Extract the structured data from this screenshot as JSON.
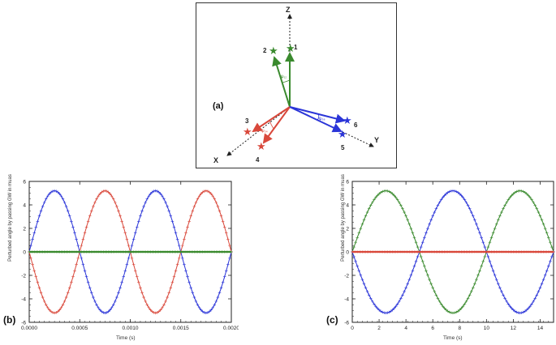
{
  "panels": {
    "a_label": "(a)",
    "b_label": "(b)",
    "c_label": "(c)"
  },
  "diagram": {
    "axes": {
      "z": "Z",
      "x": "X",
      "y": "Y"
    },
    "stars": [
      "1",
      "2",
      "3",
      "4",
      "5",
      "6"
    ],
    "angle_labels": {
      "green": "ψ₁₂",
      "red": "ψ₃₄",
      "blue": "ψ₅₆"
    },
    "colors": {
      "green": "#3a8a2e",
      "red": "#d9483b",
      "blue": "#2b35d8"
    }
  },
  "chart_data": [
    {
      "type": "line",
      "panel": "(b)",
      "xlabel": "Time (s)",
      "ylabel": "Perturbed angle by passing GW in muas",
      "xlim": [
        0,
        0.002
      ],
      "ylim": [
        -6,
        6
      ],
      "xticks": [
        "0.0000",
        "0.0005",
        "0.0010",
        "0.0015",
        "0.0020"
      ],
      "yticks": [
        "6",
        "4",
        "2",
        "0",
        "-2",
        "-4",
        "-6"
      ],
      "series": [
        {
          "color": "#2b35d8",
          "amplitude": 5.2,
          "period": 0.001,
          "phase": 0,
          "x_range": [
            0,
            0.002
          ]
        },
        {
          "color": "#d9483b",
          "amplitude": -5.2,
          "period": 0.001,
          "phase": 0,
          "x_range": [
            0,
            0.002
          ]
        },
        {
          "color": "#3a8a2e",
          "amplitude": 0,
          "period": 0.001,
          "phase": 0,
          "x_range": [
            0,
            0.002
          ]
        }
      ]
    },
    {
      "type": "line",
      "panel": "(c)",
      "xlabel": "Time (s)",
      "ylabel": "Perturbed angle by passing GW in muas",
      "xlim": [
        0,
        15
      ],
      "ylim": [
        -6,
        6
      ],
      "xticks": [
        "0",
        "2",
        "4",
        "6",
        "8",
        "10",
        "12",
        "14"
      ],
      "yticks": [
        "6",
        "4",
        "2",
        "0",
        "-2",
        "-4",
        "-6"
      ],
      "series": [
        {
          "color": "#3a8a2e",
          "amplitude": 5.2,
          "period": 10,
          "phase": 0,
          "x_range": [
            0,
            15
          ]
        },
        {
          "color": "#2b35d8",
          "amplitude": -5.2,
          "period": 10,
          "phase": 0,
          "x_range": [
            0,
            15
          ]
        },
        {
          "color": "#d9483b",
          "amplitude": 0,
          "period": 10,
          "phase": 0,
          "x_range": [
            0,
            15
          ]
        }
      ]
    }
  ]
}
